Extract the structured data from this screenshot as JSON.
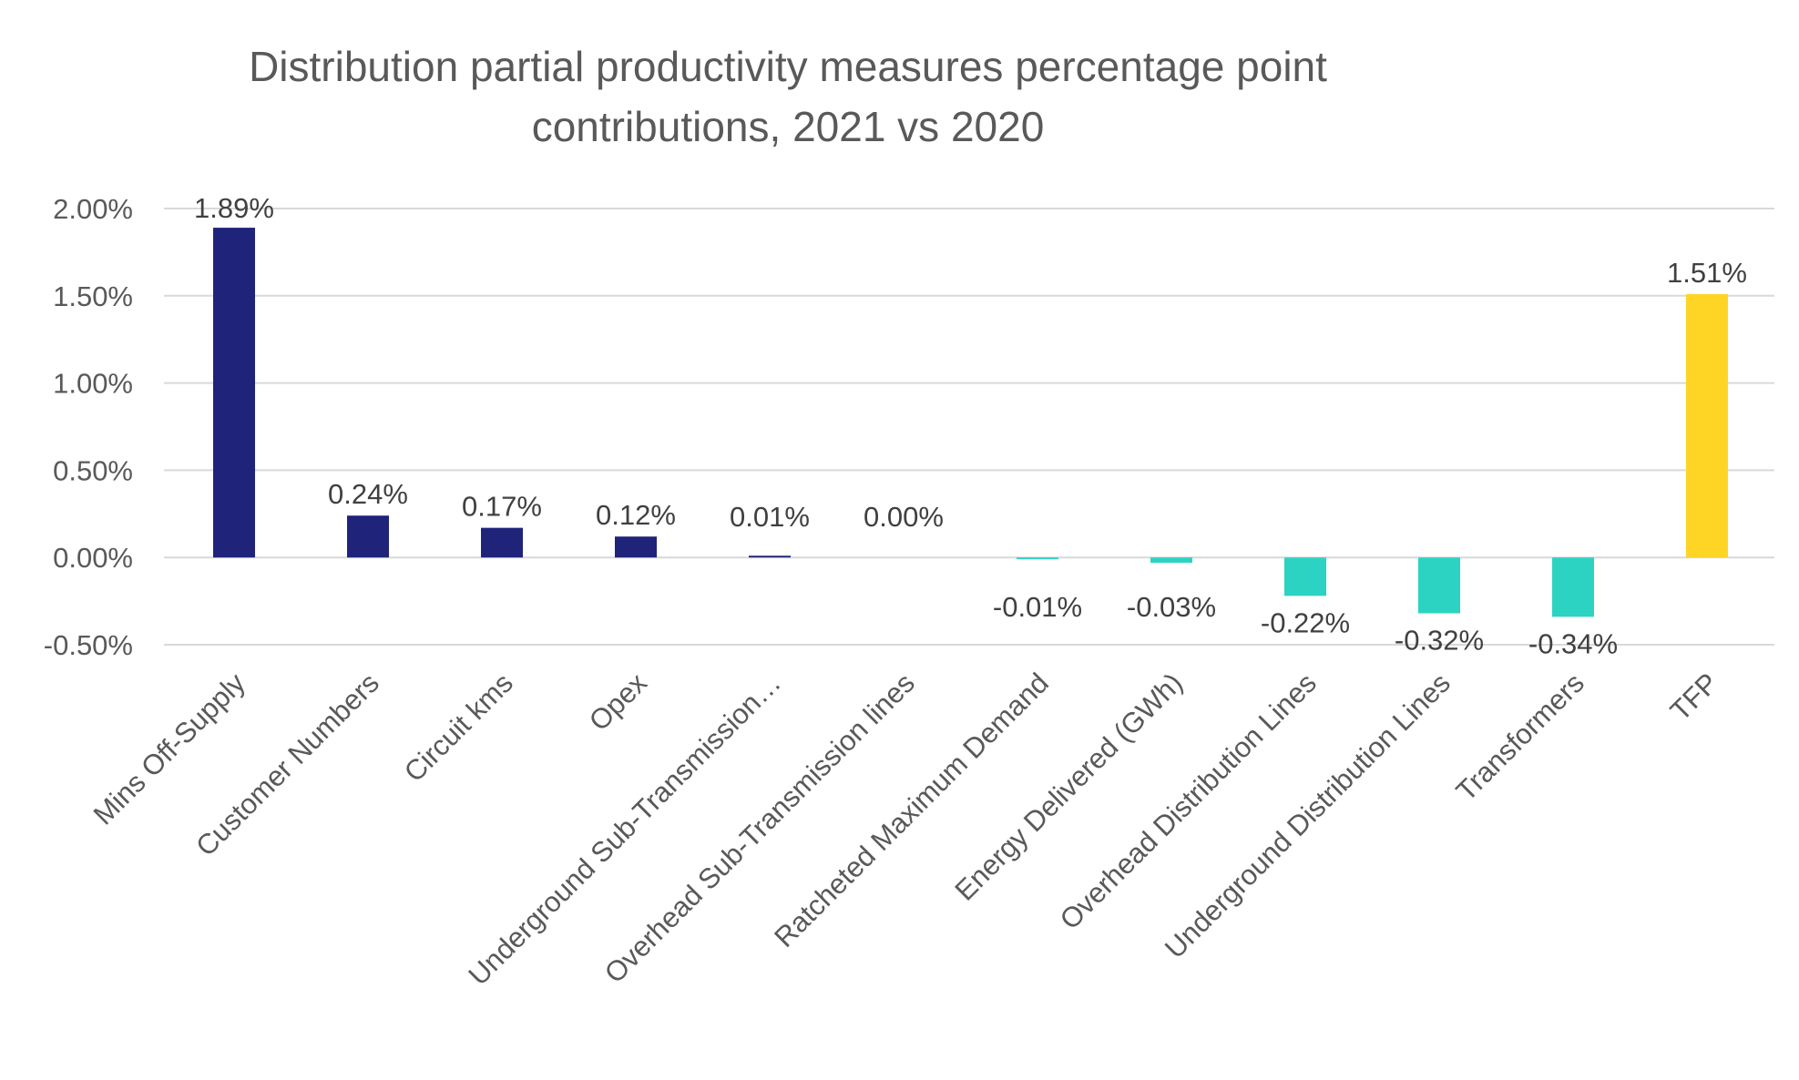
{
  "chart_data": {
    "type": "bar",
    "title_line1": "Distribution partial productivity measures percentage point",
    "title_line2": "contributions, 2021 vs 2020",
    "xlabel": "",
    "ylabel": "",
    "ylim": [
      -0.5,
      2.0
    ],
    "yticks": [
      2.0,
      1.5,
      1.0,
      0.5,
      0.0,
      -0.5
    ],
    "ytick_labels": [
      "2.00%",
      "1.50%",
      "1.00%",
      "0.50%",
      "0.00%",
      "-0.50%"
    ],
    "grid": true,
    "legend": "none",
    "categories": [
      "Mins Off-Supply",
      "Customer Numbers",
      "Circuit kms",
      "Opex",
      "Underground Sub-Transmission…",
      "Overhead Sub-Transmission lines",
      "Ratcheted Maximum Demand",
      "Energy Delivered (GWh)",
      "Overhead Distribution Lines",
      "Underground Distribution Lines",
      "Transformers",
      "TFP"
    ],
    "values": [
      1.89,
      0.24,
      0.17,
      0.12,
      0.01,
      0.0,
      -0.01,
      -0.03,
      -0.22,
      -0.32,
      -0.34,
      1.51
    ],
    "data_labels": [
      "1.89%",
      "0.24%",
      "0.17%",
      "0.12%",
      "0.01%",
      "0.00%",
      "-0.01%",
      "-0.03%",
      "-0.22%",
      "-0.32%",
      "-0.34%",
      "1.51%"
    ],
    "bar_colors": [
      "#1f237a",
      "#1f237a",
      "#1f237a",
      "#1f237a",
      "#1f237a",
      "#1f237a",
      "#2cd3c2",
      "#2cd3c2",
      "#2cd3c2",
      "#2cd3c2",
      "#2cd3c2",
      "#fed525"
    ],
    "colors": {
      "positive": "#1f237a",
      "negative": "#2cd3c2",
      "total": "#fed525",
      "gridline": "#d9d9d9",
      "text": "#595959",
      "label": "#404040"
    }
  }
}
